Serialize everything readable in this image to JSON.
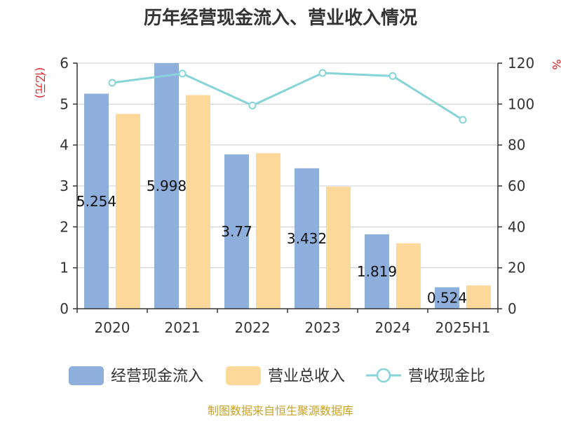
{
  "chart_data": {
    "type": "bar",
    "title": "历年经营现金流入、营业收入情况",
    "categories": [
      "2020",
      "2021",
      "2022",
      "2023",
      "2024",
      "2025H1"
    ],
    "left_axis": {
      "unit": "(亿元)",
      "ticks": [
        "0",
        "1",
        "2",
        "3",
        "4",
        "5",
        "6"
      ],
      "ylim": [
        0,
        6
      ]
    },
    "right_axis": {
      "unit": "%",
      "ticks": [
        "0",
        "20",
        "40",
        "60",
        "80",
        "100",
        "120"
      ],
      "ylim": [
        0,
        120
      ]
    },
    "series": [
      {
        "name": "经营现金流入",
        "type": "bar",
        "axis": "left",
        "color": "#8eaedc",
        "values": [
          5.254,
          5.998,
          3.77,
          3.432,
          1.819,
          0.524
        ],
        "labels": [
          "5.254",
          "5.998",
          "3.77",
          "3.432",
          "1.819",
          "0.524"
        ]
      },
      {
        "name": "营业总收入",
        "type": "bar",
        "axis": "left",
        "color": "#fdd89b",
        "values": [
          4.76,
          5.22,
          3.8,
          2.98,
          1.6,
          0.57
        ]
      },
      {
        "name": "营收现金比",
        "type": "line",
        "axis": "right",
        "color": "#86d4d8",
        "values": [
          110.4,
          114.9,
          99.3,
          115.2,
          113.7,
          92.3
        ]
      }
    ],
    "grid": true,
    "legend_position": "bottom"
  },
  "source": "制图数据来自恒生聚源数据库"
}
